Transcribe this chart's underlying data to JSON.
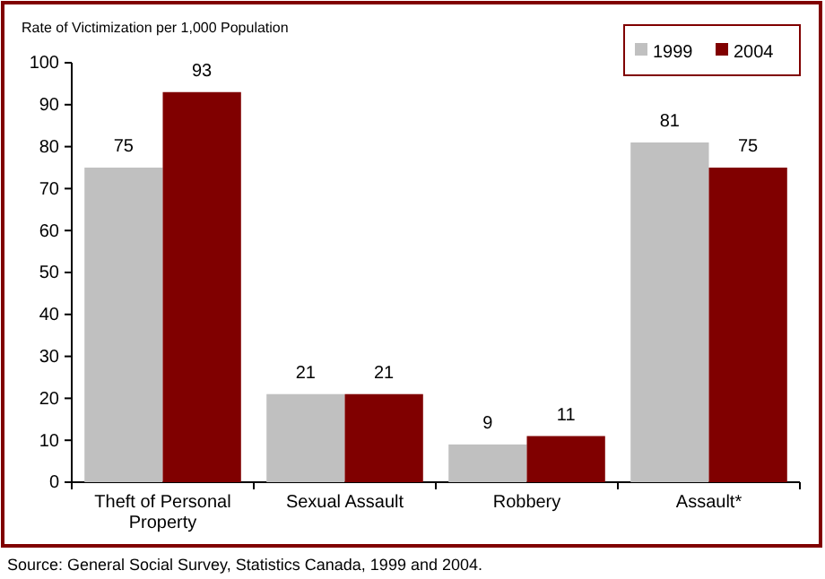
{
  "chart_data": {
    "type": "bar",
    "ylabel": "Rate of Victimization per 1,000 Population",
    "categories": [
      "Theft of Personal Property",
      "Sexual Assault",
      "Robbery",
      "Assault*"
    ],
    "series": [
      {
        "name": "1999",
        "color": "#c0c0c0",
        "values": [
          75,
          21,
          9,
          81
        ]
      },
      {
        "name": "2004",
        "color": "#800000",
        "values": [
          93,
          21,
          11,
          75
        ]
      }
    ],
    "ylim": [
      0,
      100
    ],
    "yticks": [
      0,
      10,
      20,
      30,
      40,
      50,
      60,
      70,
      80,
      90,
      100
    ],
    "data_labels": true,
    "legend": "top right",
    "grid": false,
    "annotations": [
      "Source:  General Social Survey, Statistics Canada, 1999 and 2004."
    ]
  }
}
